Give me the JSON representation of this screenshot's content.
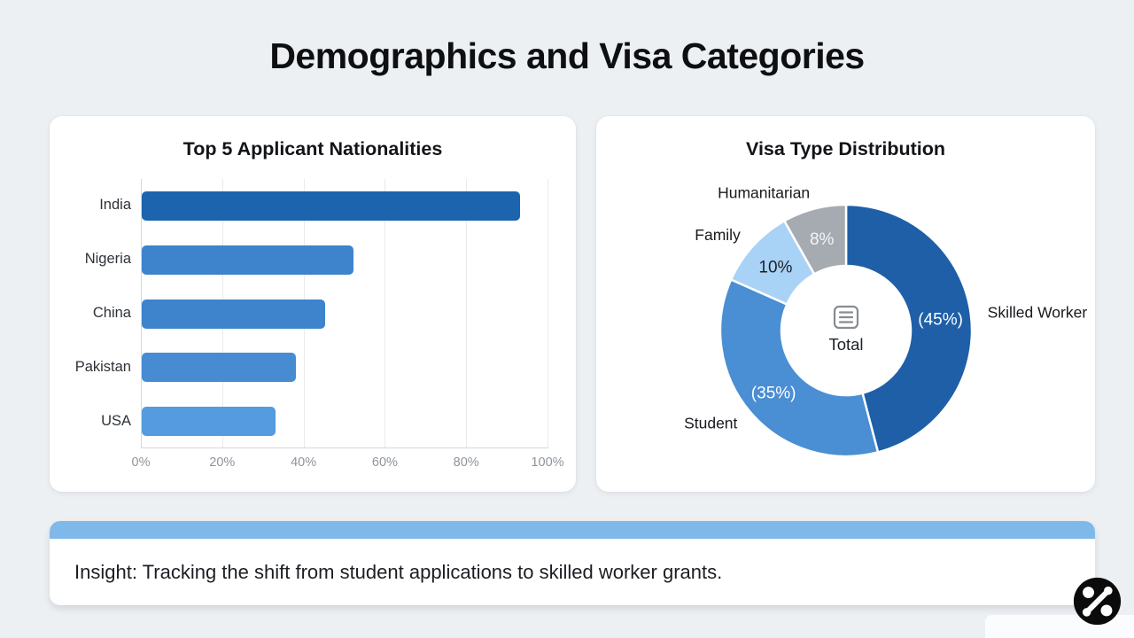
{
  "page": {
    "title": "Demographics and Visa Categories",
    "background_color": "#edf0f3"
  },
  "insight": {
    "text": "Insight: Tracking the shift from student applications to skilled worker grants.",
    "accent_color": "#7fb9ea"
  },
  "logo": {
    "description": "percent-mark-logo",
    "background_color": "#0b0b0b",
    "glyph_color": "#ffffff"
  },
  "chart_data": [
    {
      "type": "bar",
      "orientation": "horizontal",
      "title": "Top 5 Applicant Nationalities",
      "categories": [
        "India",
        "Nigeria",
        "China",
        "Pakistan",
        "USA"
      ],
      "values": [
        93,
        52,
        45,
        38,
        33
      ],
      "unit": "%",
      "xlim": [
        0,
        100
      ],
      "x_ticks": [
        "0%",
        "20%",
        "40%",
        "60%",
        "80%",
        "100%"
      ],
      "bar_colors": [
        "#1c64ae",
        "#3d84cd",
        "#3d84cd",
        "#478bd3",
        "#549bdf"
      ],
      "grid": true,
      "ylabel": "",
      "xlabel": ""
    },
    {
      "type": "pie",
      "donut": true,
      "title": "Visa Type Distribution",
      "center_label": "Total",
      "center_icon": "document-lines-icon",
      "slices": [
        {
          "label": "Skilled Worker",
          "value": 45,
          "display": "(45%)",
          "color": "#1e5fa8",
          "inner_label_color": "#ffffff"
        },
        {
          "label": "Student",
          "value": 35,
          "display": "(35%)",
          "color": "#4a8ed3",
          "inner_label_color": "#ffffff"
        },
        {
          "label": "Family",
          "value": 10,
          "display": "10%",
          "color": "#a9d2f7",
          "inner_label_color": "#1d2126"
        },
        {
          "label": "Humanitarian",
          "value": 8,
          "display": "8%",
          "color": "#a6abb2",
          "inner_label_color": "#f4f5f7"
        }
      ],
      "start_angle_deg": 0,
      "clockwise": true,
      "legend": "outside-labels"
    }
  ]
}
